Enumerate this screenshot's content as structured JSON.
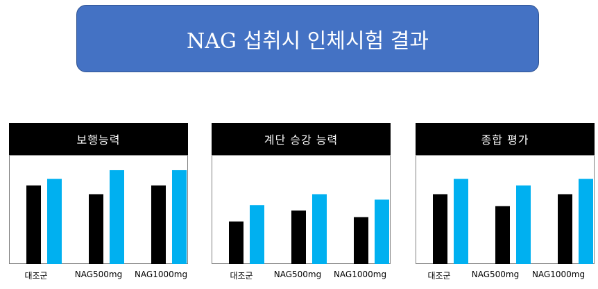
{
  "title": "NAG 섭취시 인체시험 결과",
  "colors": {
    "title_bg": "#4472c4",
    "series_a": "#000000",
    "series_b": "#00b0f0"
  },
  "chart_data": [
    {
      "type": "bar",
      "title": "보행능력",
      "categories": [
        "대조군",
        "NAG500mg",
        "NAG1000mg"
      ],
      "series": [
        {
          "values": [
            0.72,
            0.64,
            0.72
          ]
        },
        {
          "values": [
            0.78,
            0.86,
            0.86
          ]
        }
      ],
      "ylim": [
        0,
        1
      ],
      "grid": false
    },
    {
      "type": "bar",
      "title": "계단 승강 능력",
      "categories": [
        "대조군",
        "NAG500mg",
        "NAG1000mg"
      ],
      "series": [
        {
          "values": [
            0.39,
            0.49,
            0.43
          ]
        },
        {
          "values": [
            0.54,
            0.64,
            0.59
          ]
        }
      ],
      "ylim": [
        0,
        1
      ],
      "grid": false
    },
    {
      "type": "bar",
      "title": "종합 평가",
      "categories": [
        "대조군",
        "NAG500mg",
        "NAG1000mg"
      ],
      "series": [
        {
          "values": [
            0.64,
            0.53,
            0.64
          ]
        },
        {
          "values": [
            0.78,
            0.72,
            0.78
          ]
        }
      ],
      "ylim": [
        0,
        1
      ],
      "grid": false
    }
  ]
}
